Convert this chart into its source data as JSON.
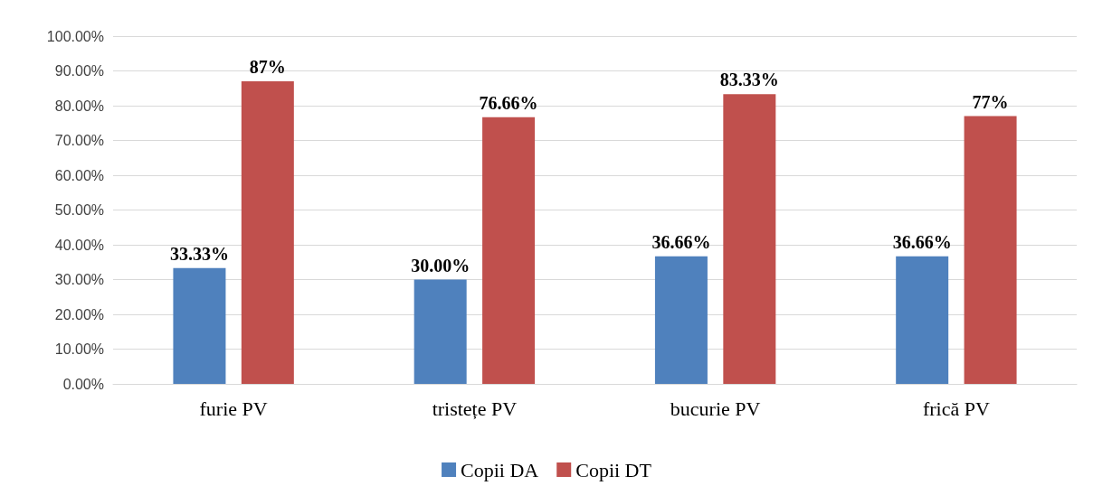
{
  "chart_data": {
    "type": "bar",
    "categories": [
      "furie PV",
      "tristețe PV",
      "bucurie PV",
      "frică PV"
    ],
    "series": [
      {
        "name": "Copii DA",
        "color": "#4f81bd",
        "values": [
          33.33,
          30.0,
          36.66,
          36.66
        ],
        "value_labels": [
          "33.33%",
          "30.00%",
          "36.66%",
          "36.66%"
        ]
      },
      {
        "name": "Copii DT",
        "color": "#c0504d",
        "values": [
          87,
          76.66,
          83.33,
          77
        ],
        "value_labels": [
          "87%",
          "76.66%",
          "83.33%",
          "77%"
        ]
      }
    ],
    "ylim": [
      0,
      100
    ],
    "yticks": [
      {
        "value": 0,
        "label": "0.00%"
      },
      {
        "value": 10,
        "label": "10.00%"
      },
      {
        "value": 20,
        "label": "20.00%"
      },
      {
        "value": 30,
        "label": "30.00%"
      },
      {
        "value": 40,
        "label": "40.00%"
      },
      {
        "value": 50,
        "label": "50.00%"
      },
      {
        "value": 60,
        "label": "60.00%"
      },
      {
        "value": 70,
        "label": "70.00%"
      },
      {
        "value": 80,
        "label": "80.00%"
      },
      {
        "value": 90,
        "label": "90.00%"
      },
      {
        "value": 100,
        "label": "100.00%"
      }
    ],
    "grid": "y",
    "legend": "bottom"
  }
}
